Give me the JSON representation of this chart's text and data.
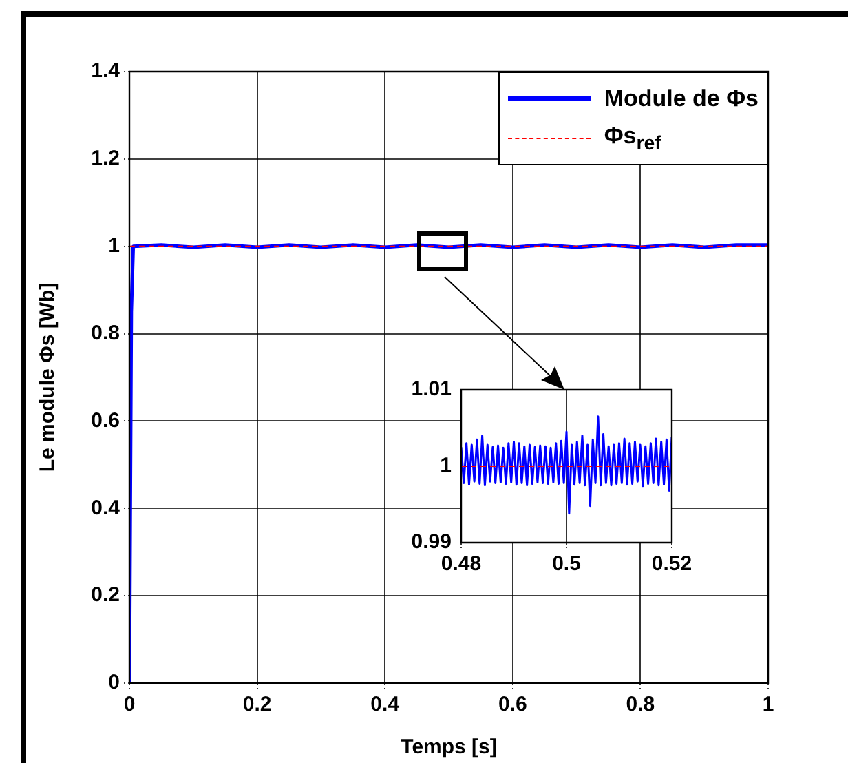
{
  "chart_data": [
    {
      "type": "line",
      "xlabel": "Temps [s]",
      "ylabel": "Le module Φs [Wb]",
      "xlim": [
        0,
        1
      ],
      "xticks": [
        0,
        0.2,
        0.4,
        0.6,
        0.8,
        1
      ],
      "ylim": [
        0,
        1.4
      ],
      "yticks": [
        0,
        0.2,
        0.4,
        0.6,
        0.8,
        1,
        1.2,
        1.4
      ],
      "grid": true,
      "legend": "top right",
      "series": [
        {
          "name": "Module de Φs",
          "color": "#0000ff",
          "x": [
            0,
            0.003,
            0.006,
            0.05,
            0.1,
            0.15,
            0.2,
            0.25,
            0.3,
            0.35,
            0.4,
            0.45,
            0.5,
            0.55,
            0.6,
            0.65,
            0.7,
            0.75,
            0.8,
            0.85,
            0.9,
            0.95,
            1
          ],
          "values": [
            0,
            0.85,
            1,
            1.003,
            0.998,
            1.003,
            0.998,
            1.003,
            0.998,
            1.003,
            0.998,
            1.003,
            0.998,
            1.003,
            0.998,
            1.003,
            0.998,
            1.003,
            0.998,
            1.003,
            0.998,
            1.003,
            1.003
          ]
        },
        {
          "name": "Φs$_{ref}$",
          "color": "#ff0000",
          "line_style": "dashed",
          "x": [
            0,
            1
          ],
          "values": [
            1,
            1
          ]
        }
      ]
    },
    {
      "type": "line",
      "xlim": [
        0.48,
        0.52
      ],
      "xticks": [
        0.48,
        0.5,
        0.52
      ],
      "ylim": [
        0.99,
        1.01
      ],
      "yticks": [
        0.99,
        1,
        1.01
      ],
      "grid": "x",
      "series": [
        {
          "color": "#0000ff",
          "x": [
            0.48,
            0.4805,
            0.481,
            0.4815,
            0.482,
            0.4825,
            0.483,
            0.4835,
            0.484,
            0.4845,
            0.485,
            0.4855,
            0.486,
            0.4865,
            0.487,
            0.4875,
            0.488,
            0.4885,
            0.489,
            0.4895,
            0.49,
            0.4905,
            0.491,
            0.4915,
            0.492,
            0.4925,
            0.493,
            0.4935,
            0.494,
            0.4945,
            0.495,
            0.4955,
            0.496,
            0.4965,
            0.497,
            0.4975,
            0.498,
            0.4985,
            0.499,
            0.4995,
            0.5,
            0.5005,
            0.501,
            0.5015,
            0.502,
            0.5025,
            0.503,
            0.5035,
            0.504,
            0.5045,
            0.505,
            0.5055,
            0.506,
            0.5065,
            0.507,
            0.5075,
            0.508,
            0.5085,
            0.509,
            0.5095,
            0.51,
            0.5105,
            0.511,
            0.5115,
            0.512,
            0.5125,
            0.513,
            0.5135,
            0.514,
            0.5145,
            0.515,
            0.5155,
            0.516,
            0.5165,
            0.517,
            0.5175,
            0.518,
            0.5185,
            0.519,
            0.5195,
            0.52
          ],
          "values": [
            1.0025,
            0.9978,
            1.003,
            0.9976,
            1.0028,
            0.998,
            1.0035,
            0.9977,
            1.004,
            0.9975,
            1.0028,
            0.998,
            1.0025,
            0.9978,
            1.0027,
            0.9979,
            1.0024,
            0.9977,
            1.003,
            0.9979,
            1.0032,
            0.9976,
            1.003,
            0.9978,
            1.0026,
            0.9975,
            1.0028,
            0.9977,
            1.0025,
            0.9979,
            1.0027,
            0.9978,
            1.0026,
            0.9977,
            1.0024,
            0.9979,
            1.003,
            0.9977,
            1.0033,
            0.9978,
            1.0045,
            0.9938,
            1.0028,
            0.9976,
            1.0032,
            0.9978,
            1.004,
            0.9975,
            1.0028,
            0.9948,
            1.0035,
            0.9978,
            1.0065,
            0.9975,
            1.0042,
            0.9978,
            1.0026,
            0.9975,
            1.0028,
            0.9977,
            1.003,
            0.9978,
            1.0036,
            0.9976,
            1.003,
            0.9977,
            1.0032,
            0.998,
            1.0028,
            0.9974,
            1.0026,
            0.9977,
            1.003,
            0.9978,
            1.0036,
            0.9975,
            1.0032,
            0.9976,
            1.0035,
            0.9968,
            1.0038
          ]
        },
        {
          "color": "#ff0000",
          "line_style": "dashed",
          "x": [
            0.48,
            0.52
          ],
          "values": [
            1,
            1
          ]
        }
      ]
    }
  ]
}
